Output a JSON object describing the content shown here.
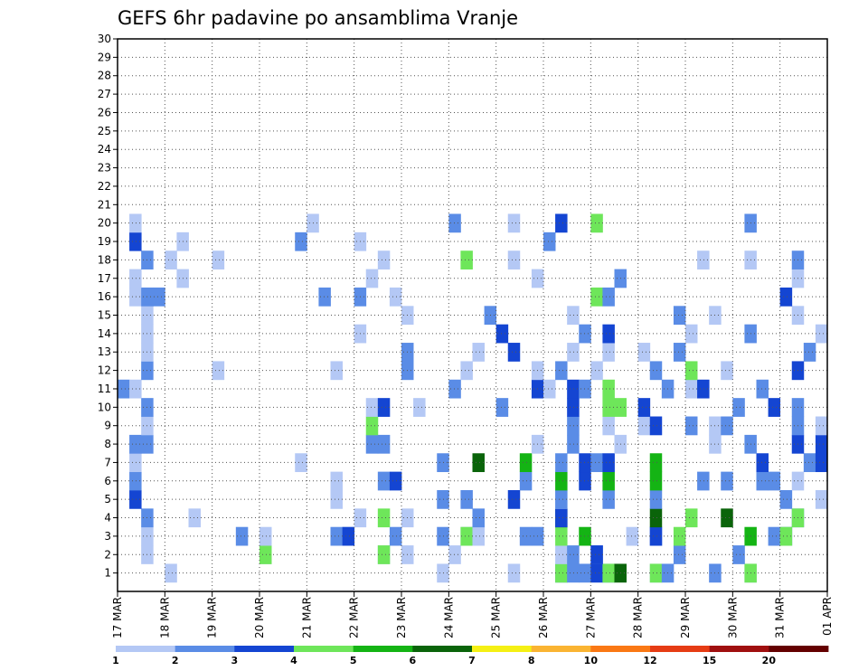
{
  "chart_data": {
    "type": "heatmap",
    "title": "GEFS 6hr padavine po ansamblima Vranje",
    "y_ticks": [
      1,
      2,
      3,
      4,
      5,
      6,
      7,
      8,
      9,
      10,
      11,
      12,
      13,
      14,
      15,
      16,
      17,
      18,
      19,
      20,
      21,
      22,
      23,
      24,
      25,
      26,
      27,
      28,
      29,
      30
    ],
    "x_ticks": [
      "17 MAR",
      "18 MAR",
      "19 MAR",
      "20 MAR",
      "21 MAR",
      "22 MAR",
      "23 MAR",
      "24 MAR",
      "25 MAR",
      "26 MAR",
      "27 MAR",
      "28 MAR",
      "29 MAR",
      "30 MAR",
      "31 MAR",
      "01 APR"
    ],
    "x_range": [
      "17 MAR 00Z",
      "01 APR 00Z"
    ],
    "y_range": [
      0,
      30
    ],
    "time_step_hours": 6,
    "grid": "dotted",
    "colorbar": {
      "levels": [
        "1",
        "2",
        "3",
        "4",
        "5",
        "6",
        "7",
        "8",
        "10",
        "12",
        "15",
        "20"
      ],
      "colors": [
        "#b4c8f5",
        "#5a8ce6",
        "#1445d2",
        "#6ee65a",
        "#14b414",
        "#0a640a",
        "#f5f014",
        "#fab432",
        "#fa7814",
        "#e63c14",
        "#a00f0f",
        "#640000"
      ]
    },
    "cells": [
      [
        1,
        "18 MAR 00Z",
        0
      ],
      [
        1,
        "23 MAR 18Z",
        0
      ],
      [
        1,
        "25 MAR 06Z",
        0
      ],
      [
        1,
        "26 MAR 06Z",
        1
      ],
      [
        1,
        "26 MAR 06Z",
        3
      ],
      [
        1,
        "26 MAR 12Z",
        1
      ],
      [
        1,
        "26 MAR 18Z",
        1
      ],
      [
        1,
        "27 MAR 00Z",
        2
      ],
      [
        1,
        "27 MAR 06Z",
        1
      ],
      [
        1,
        "27 MAR 06Z",
        3
      ],
      [
        1,
        "27 MAR 12Z",
        5
      ],
      [
        1,
        "28 MAR 06Z",
        0
      ],
      [
        1,
        "28 MAR 06Z",
        3
      ],
      [
        1,
        "28 MAR 12Z",
        1
      ],
      [
        1,
        "29 MAR 12Z",
        1
      ],
      [
        1,
        "30 MAR 06Z",
        0
      ],
      [
        1,
        "30 MAR 06Z",
        3
      ],
      [
        2,
        "17 MAR 12Z",
        0
      ],
      [
        2,
        "20 MAR 00Z",
        0
      ],
      [
        2,
        "20 MAR 00Z",
        3
      ],
      [
        2,
        "22 MAR 12Z",
        0
      ],
      [
        2,
        "22 MAR 12Z",
        3
      ],
      [
        2,
        "23 MAR 00Z",
        0
      ],
      [
        2,
        "24 MAR 00Z",
        0
      ],
      [
        2,
        "26 MAR 06Z",
        0
      ],
      [
        2,
        "26 MAR 12Z",
        1
      ],
      [
        2,
        "27 MAR 00Z",
        1
      ],
      [
        2,
        "27 MAR 00Z",
        2
      ],
      [
        2,
        "28 MAR 18Z",
        1
      ],
      [
        2,
        "30 MAR 00Z",
        1
      ],
      [
        3,
        "17 MAR 12Z",
        0
      ],
      [
        3,
        "19 MAR 12Z",
        1
      ],
      [
        3,
        "20 MAR 00Z",
        0
      ],
      [
        3,
        "21 MAR 12Z",
        1
      ],
      [
        3,
        "21 MAR 18Z",
        0
      ],
      [
        3,
        "21 MAR 18Z",
        2
      ],
      [
        3,
        "22 MAR 18Z",
        1
      ],
      [
        3,
        "23 MAR 18Z",
        1
      ],
      [
        3,
        "24 MAR 06Z",
        0
      ],
      [
        3,
        "24 MAR 06Z",
        3
      ],
      [
        3,
        "24 MAR 12Z",
        0
      ],
      [
        3,
        "25 MAR 12Z",
        1
      ],
      [
        3,
        "25 MAR 18Z",
        1
      ],
      [
        3,
        "26 MAR 06Z",
        3
      ],
      [
        3,
        "26 MAR 18Z",
        4
      ],
      [
        3,
        "27 MAR 18Z",
        0
      ],
      [
        3,
        "28 MAR 06Z",
        1
      ],
      [
        3,
        "28 MAR 06Z",
        2
      ],
      [
        3,
        "28 MAR 18Z",
        3
      ],
      [
        3,
        "30 MAR 06Z",
        4
      ],
      [
        3,
        "30 MAR 18Z",
        1
      ],
      [
        3,
        "31 MAR 00Z",
        1
      ],
      [
        3,
        "31 MAR 00Z",
        3
      ],
      [
        4,
        "17 MAR 12Z",
        1
      ],
      [
        4,
        "18 MAR 12Z",
        0
      ],
      [
        4,
        "22 MAR 00Z",
        0
      ],
      [
        4,
        "22 MAR 12Z",
        3
      ],
      [
        4,
        "23 MAR 00Z",
        0
      ],
      [
        4,
        "24 MAR 12Z",
        1
      ],
      [
        4,
        "26 MAR 06Z",
        5
      ],
      [
        4,
        "26 MAR 06Z",
        2
      ],
      [
        4,
        "28 MAR 06Z",
        5
      ],
      [
        4,
        "29 MAR 00Z",
        3
      ],
      [
        4,
        "29 MAR 18Z",
        5
      ],
      [
        4,
        "31 MAR 06Z",
        1
      ],
      [
        4,
        "31 MAR 06Z",
        3
      ],
      [
        5,
        "17 MAR 06Z",
        2
      ],
      [
        5,
        "21 MAR 12Z",
        0
      ],
      [
        5,
        "23 MAR 18Z",
        1
      ],
      [
        5,
        "24 MAR 06Z",
        1
      ],
      [
        5,
        "25 MAR 06Z",
        2
      ],
      [
        5,
        "26 MAR 06Z",
        0
      ],
      [
        5,
        "26 MAR 06Z",
        1
      ],
      [
        5,
        "27 MAR 06Z",
        1
      ],
      [
        5,
        "28 MAR 06Z",
        1
      ],
      [
        5,
        "31 MAR 00Z",
        1
      ],
      [
        5,
        "31 MAR 18Z",
        0
      ],
      [
        6,
        "17 MAR 06Z",
        1
      ],
      [
        6,
        "21 MAR 12Z",
        0
      ],
      [
        6,
        "22 MAR 12Z",
        1
      ],
      [
        6,
        "22 MAR 18Z",
        2
      ],
      [
        6,
        "25 MAR 12Z",
        1
      ],
      [
        6,
        "26 MAR 06Z",
        4
      ],
      [
        6,
        "26 MAR 18Z",
        2
      ],
      [
        6,
        "27 MAR 06Z",
        4
      ],
      [
        6,
        "28 MAR 06Z",
        4
      ],
      [
        6,
        "29 MAR 06Z",
        1
      ],
      [
        6,
        "29 MAR 18Z",
        1
      ],
      [
        6,
        "30 MAR 12Z",
        1
      ],
      [
        6,
        "30 MAR 18Z",
        1
      ],
      [
        6,
        "31 MAR 06Z",
        0
      ],
      [
        7,
        "17 MAR 06Z",
        0
      ],
      [
        7,
        "20 MAR 18Z",
        0
      ],
      [
        7,
        "23 MAR 18Z",
        1
      ],
      [
        7,
        "24 MAR 12Z",
        5
      ],
      [
        7,
        "25 MAR 12Z",
        4
      ],
      [
        7,
        "26 MAR 06Z",
        1
      ],
      [
        7,
        "26 MAR 18Z",
        2
      ],
      [
        7,
        "27 MAR 00Z",
        1
      ],
      [
        7,
        "27 MAR 06Z",
        2
      ],
      [
        7,
        "28 MAR 06Z",
        4
      ],
      [
        7,
        "30 MAR 12Z",
        2
      ],
      [
        7,
        "31 MAR 12Z",
        1
      ],
      [
        7,
        "31 MAR 18Z",
        2
      ],
      [
        8,
        "17 MAR 06Z",
        1
      ],
      [
        8,
        "17 MAR 12Z",
        1
      ],
      [
        8,
        "22 MAR 06Z",
        1
      ],
      [
        8,
        "22 MAR 12Z",
        1
      ],
      [
        8,
        "25 MAR 18Z",
        0
      ],
      [
        8,
        "26 MAR 12Z",
        1
      ],
      [
        8,
        "27 MAR 12Z",
        0
      ],
      [
        8,
        "29 MAR 12Z",
        0
      ],
      [
        8,
        "30 MAR 06Z",
        1
      ],
      [
        8,
        "31 MAR 06Z",
        2
      ],
      [
        8,
        "31 MAR 18Z",
        2
      ],
      [
        9,
        "17 MAR 12Z",
        0
      ],
      [
        9,
        "22 MAR 06Z",
        3
      ],
      [
        9,
        "26 MAR 12Z",
        1
      ],
      [
        9,
        "27 MAR 06Z",
        0
      ],
      [
        9,
        "28 MAR 00Z",
        0
      ],
      [
        9,
        "28 MAR 06Z",
        2
      ],
      [
        9,
        "29 MAR 00Z",
        1
      ],
      [
        9,
        "29 MAR 12Z",
        0
      ],
      [
        9,
        "29 MAR 18Z",
        1
      ],
      [
        9,
        "31 MAR 06Z",
        1
      ],
      [
        9,
        "31 MAR 18Z",
        0
      ],
      [
        10,
        "17 MAR 12Z",
        1
      ],
      [
        10,
        "22 MAR 06Z",
        0
      ],
      [
        10,
        "22 MAR 12Z",
        2
      ],
      [
        10,
        "23 MAR 06Z",
        0
      ],
      [
        10,
        "25 MAR 00Z",
        1
      ],
      [
        10,
        "26 MAR 12Z",
        2
      ],
      [
        10,
        "27 MAR 06Z",
        3
      ],
      [
        10,
        "27 MAR 12Z",
        3
      ],
      [
        10,
        "28 MAR 00Z",
        2
      ],
      [
        10,
        "30 MAR 00Z",
        1
      ],
      [
        10,
        "30 MAR 18Z",
        2
      ],
      [
        10,
        "31 MAR 06Z",
        1
      ],
      [
        11,
        "17 MAR 00Z",
        1
      ],
      [
        11,
        "17 MAR 06Z",
        0
      ],
      [
        11,
        "24 MAR 00Z",
        1
      ],
      [
        11,
        "25 MAR 18Z",
        2
      ],
      [
        11,
        "26 MAR 00Z",
        0
      ],
      [
        11,
        "26 MAR 12Z",
        2
      ],
      [
        11,
        "26 MAR 18Z",
        1
      ],
      [
        11,
        "27 MAR 06Z",
        3
      ],
      [
        11,
        "28 MAR 12Z",
        1
      ],
      [
        11,
        "29 MAR 00Z",
        0
      ],
      [
        11,
        "29 MAR 06Z",
        2
      ],
      [
        11,
        "30 MAR 12Z",
        1
      ],
      [
        12,
        "17 MAR 12Z",
        1
      ],
      [
        12,
        "19 MAR 00Z",
        0
      ],
      [
        12,
        "21 MAR 12Z",
        0
      ],
      [
        12,
        "23 MAR 00Z",
        1
      ],
      [
        12,
        "24 MAR 06Z",
        0
      ],
      [
        12,
        "25 MAR 18Z",
        0
      ],
      [
        12,
        "26 MAR 06Z",
        1
      ],
      [
        12,
        "27 MAR 00Z",
        0
      ],
      [
        12,
        "28 MAR 06Z",
        1
      ],
      [
        12,
        "29 MAR 00Z",
        3
      ],
      [
        12,
        "29 MAR 18Z",
        0
      ],
      [
        12,
        "31 MAR 06Z",
        2
      ],
      [
        13,
        "17 MAR 12Z",
        0
      ],
      [
        13,
        "23 MAR 00Z",
        1
      ],
      [
        13,
        "24 MAR 12Z",
        0
      ],
      [
        13,
        "25 MAR 06Z",
        2
      ],
      [
        13,
        "26 MAR 12Z",
        0
      ],
      [
        13,
        "27 MAR 06Z",
        0
      ],
      [
        13,
        "28 MAR 00Z",
        0
      ],
      [
        13,
        "28 MAR 18Z",
        1
      ],
      [
        13,
        "31 MAR 12Z",
        1
      ],
      [
        14,
        "17 MAR 12Z",
        0
      ],
      [
        14,
        "22 MAR 00Z",
        0
      ],
      [
        14,
        "25 MAR 00Z",
        2
      ],
      [
        14,
        "26 MAR 18Z",
        1
      ],
      [
        14,
        "27 MAR 06Z",
        2
      ],
      [
        14,
        "29 MAR 00Z",
        0
      ],
      [
        14,
        "30 MAR 06Z",
        1
      ],
      [
        14,
        "31 MAR 18Z",
        0
      ],
      [
        15,
        "17 MAR 12Z",
        0
      ],
      [
        15,
        "23 MAR 00Z",
        0
      ],
      [
        15,
        "24 MAR 18Z",
        1
      ],
      [
        15,
        "26 MAR 12Z",
        0
      ],
      [
        15,
        "28 MAR 18Z",
        1
      ],
      [
        15,
        "29 MAR 12Z",
        0
      ],
      [
        15,
        "31 MAR 06Z",
        0
      ],
      [
        16,
        "17 MAR 06Z",
        0
      ],
      [
        16,
        "17 MAR 12Z",
        1
      ],
      [
        16,
        "17 MAR 18Z",
        1
      ],
      [
        16,
        "21 MAR 06Z",
        1
      ],
      [
        16,
        "22 MAR 00Z",
        1
      ],
      [
        16,
        "22 MAR 18Z",
        0
      ],
      [
        16,
        "27 MAR 00Z",
        3
      ],
      [
        16,
        "27 MAR 06Z",
        1
      ],
      [
        16,
        "31 MAR 00Z",
        2
      ],
      [
        17,
        "17 MAR 06Z",
        0
      ],
      [
        17,
        "18 MAR 06Z",
        0
      ],
      [
        17,
        "22 MAR 06Z",
        0
      ],
      [
        17,
        "25 MAR 18Z",
        0
      ],
      [
        17,
        "27 MAR 12Z",
        1
      ],
      [
        17,
        "31 MAR 06Z",
        0
      ],
      [
        18,
        "17 MAR 12Z",
        1
      ],
      [
        18,
        "18 MAR 00Z",
        0
      ],
      [
        18,
        "19 MAR 00Z",
        0
      ],
      [
        18,
        "22 MAR 12Z",
        0
      ],
      [
        18,
        "24 MAR 06Z",
        3
      ],
      [
        18,
        "25 MAR 06Z",
        0
      ],
      [
        18,
        "29 MAR 06Z",
        0
      ],
      [
        18,
        "30 MAR 06Z",
        0
      ],
      [
        18,
        "31 MAR 06Z",
        1
      ],
      [
        19,
        "17 MAR 06Z",
        2
      ],
      [
        19,
        "18 MAR 06Z",
        0
      ],
      [
        19,
        "20 MAR 18Z",
        1
      ],
      [
        19,
        "22 MAR 00Z",
        0
      ],
      [
        19,
        "26 MAR 00Z",
        1
      ],
      [
        20,
        "17 MAR 06Z",
        0
      ],
      [
        20,
        "21 MAR 00Z",
        0
      ],
      [
        20,
        "24 MAR 00Z",
        1
      ],
      [
        20,
        "25 MAR 06Z",
        0
      ],
      [
        20,
        "26 MAR 06Z",
        2
      ],
      [
        20,
        "27 MAR 00Z",
        3
      ],
      [
        20,
        "30 MAR 06Z",
        1
      ]
    ]
  }
}
